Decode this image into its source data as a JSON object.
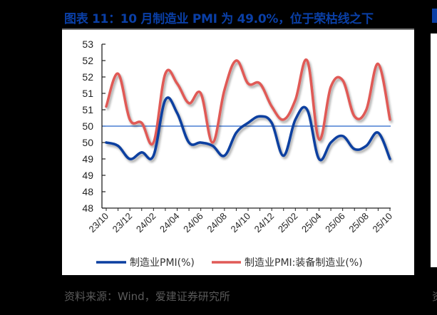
{
  "figure": {
    "title": "图表 11：10 月制造业 PMI 为 49.0%，位于荣枯线之下",
    "source": "资料来源：Wind，爱建证券研究所",
    "next_panel_source_fragment": "资"
  },
  "colors": {
    "title": "#0a3fa6",
    "series_manufacturing": "#0b3fa0",
    "series_equipment": "#e05a57",
    "reference_line": "#4a7fd4",
    "axis": "#222222"
  },
  "chart_data": {
    "type": "line",
    "title": "10 月制造业 PMI 为 49.0%，位于荣枯线之下",
    "xlabel": "",
    "ylabel": "",
    "ylim": [
      47.5,
      52.5
    ],
    "yticks": [
      52.5,
      52.0,
      51.5,
      51.0,
      50.5,
      50.0,
      49.5,
      49.0,
      48.5,
      48.0,
      47.5
    ],
    "ytick_labels": [
      "53",
      "52",
      "52",
      "51",
      "51",
      "50",
      "50",
      "49",
      "49",
      "48",
      "48"
    ],
    "x": [
      "23/10",
      "23/11",
      "23/12",
      "24/01",
      "24/02",
      "24/03",
      "24/04",
      "24/05",
      "24/06",
      "24/07",
      "24/08",
      "24/09",
      "24/10",
      "24/11",
      "24/12",
      "25/01",
      "25/02",
      "25/03",
      "25/04",
      "25/05",
      "25/06",
      "25/07",
      "25/08",
      "25/09",
      "25/10"
    ],
    "xtick_labels": [
      "23/10",
      "23/12",
      "24/02",
      "24/04",
      "24/06",
      "24/08",
      "24/10",
      "24/12",
      "25/02",
      "25/04",
      "25/06",
      "25/08",
      "25/10"
    ],
    "reference_line": 50.0,
    "grid": false,
    "legend_position": "bottom",
    "series": [
      {
        "name": "制造业PMI(%)",
        "color": "#0b3fa0",
        "values": [
          49.5,
          49.4,
          49.0,
          49.2,
          49.1,
          50.8,
          50.4,
          49.5,
          49.5,
          49.4,
          49.1,
          49.8,
          50.1,
          50.3,
          50.1,
          49.1,
          50.2,
          50.5,
          49.0,
          49.5,
          49.7,
          49.3,
          49.4,
          49.8,
          49.0
        ]
      },
      {
        "name": "制造业PMI:装备制造业(%)",
        "color": "#e05a57",
        "values": [
          50.6,
          51.6,
          50.2,
          50.1,
          49.5,
          51.6,
          51.3,
          50.7,
          51.0,
          49.5,
          51.1,
          52.0,
          51.3,
          51.3,
          50.6,
          50.2,
          50.8,
          52.0,
          49.6,
          51.2,
          51.4,
          50.3,
          50.5,
          51.9,
          50.2
        ]
      }
    ]
  }
}
